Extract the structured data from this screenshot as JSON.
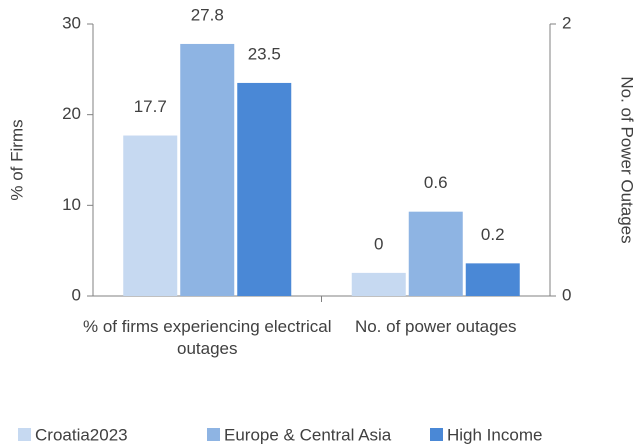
{
  "chart_data": {
    "type": "bar",
    "categories": [
      "% of firms experiencing electrical outages",
      "No. of power outages"
    ],
    "category_axis": [
      "y",
      "y2"
    ],
    "series": [
      {
        "name": "Croatia2023",
        "color": "#c6d9f1",
        "values": [
          17.7,
          0.17
        ],
        "value_labels": [
          "17.7",
          "0"
        ]
      },
      {
        "name": "Europe & Central Asia",
        "color": "#8eb4e3",
        "values": [
          27.8,
          0.62
        ],
        "value_labels": [
          "27.8",
          "0.6"
        ]
      },
      {
        "name": "High Income",
        "color": "#4a88d6",
        "values": [
          23.5,
          0.24
        ],
        "value_labels": [
          "23.5",
          "0.2"
        ]
      }
    ],
    "ylabel": "% of Firms",
    "y2label": "No. of Power Outages",
    "ylim": [
      0,
      30
    ],
    "yticks": [
      0,
      10,
      20,
      30
    ],
    "y2lim": [
      0,
      2
    ],
    "y2ticks": [
      0,
      2
    ],
    "legend": "bottom"
  }
}
